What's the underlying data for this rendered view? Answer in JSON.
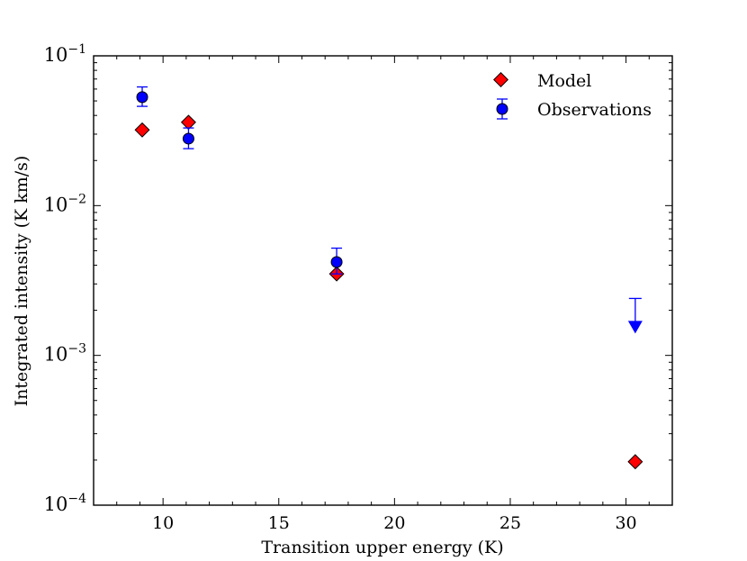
{
  "chart_data": {
    "type": "scatter",
    "xlabel": "Transition upper energy (K)",
    "ylabel": "Integrated intensity (K km/s)",
    "xlim": [
      7,
      32
    ],
    "ylim": [
      0.0001,
      0.1
    ],
    "yscale": "log",
    "x_ticks": [
      {
        "value": 10,
        "label": "10"
      },
      {
        "value": 15,
        "label": "15"
      },
      {
        "value": 20,
        "label": "20"
      },
      {
        "value": 25,
        "label": "25"
      },
      {
        "value": 30,
        "label": "30"
      }
    ],
    "y_ticks": [
      {
        "value": 0.1,
        "base": "10",
        "exp": "−1"
      },
      {
        "value": 0.01,
        "base": "10",
        "exp": "−2"
      },
      {
        "value": 0.001,
        "base": "10",
        "exp": "−3"
      },
      {
        "value": 0.0001,
        "base": "10",
        "exp": "−4"
      }
    ],
    "legend_position": "top-right",
    "series": [
      {
        "name": "Model",
        "marker": "diamond",
        "color": "#ff0000",
        "points": [
          {
            "x": 9.1,
            "y": 0.032
          },
          {
            "x": 11.1,
            "y": 0.036
          },
          {
            "x": 17.5,
            "y": 0.0035
          },
          {
            "x": 30.4,
            "y": 0.000195
          }
        ]
      },
      {
        "name": "Observations",
        "marker": "circle",
        "color": "#0000ff",
        "points": [
          {
            "x": 9.1,
            "y": 0.053,
            "err_low": 0.046,
            "err_high": 0.062
          },
          {
            "x": 11.1,
            "y": 0.028,
            "err_low": 0.024,
            "err_high": 0.033
          },
          {
            "x": 17.5,
            "y": 0.0042,
            "err_low": 0.0035,
            "err_high": 0.0052
          },
          {
            "x": 30.4,
            "y": 0.0024,
            "upper_limit": true,
            "arrow_to": 0.0015
          }
        ]
      }
    ]
  },
  "colors": {
    "axis": "#000000",
    "model": "#ff0000",
    "observations": "#0000ff"
  }
}
